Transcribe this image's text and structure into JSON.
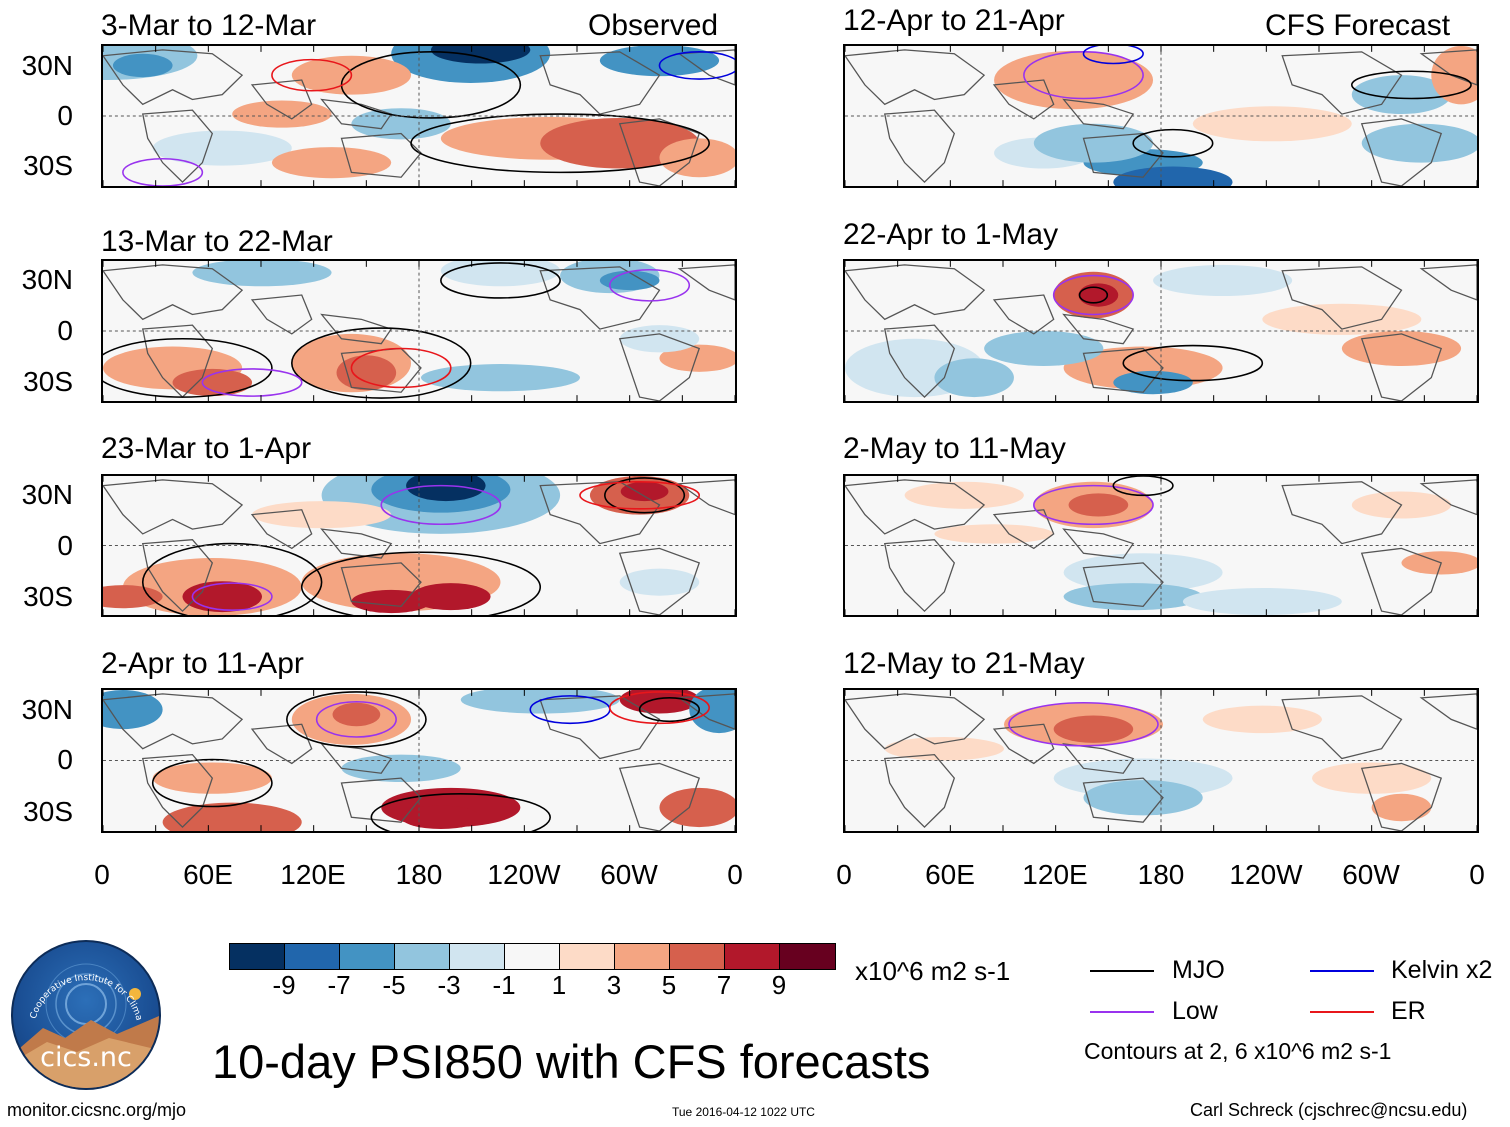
{
  "panels": [
    {
      "id": "p1",
      "title": "3-Mar to 12-Mar",
      "tag": "Observed"
    },
    {
      "id": "p2",
      "title": "13-Mar to 22-Mar",
      "tag": ""
    },
    {
      "id": "p3",
      "title": "23-Mar to 1-Apr",
      "tag": ""
    },
    {
      "id": "p4",
      "title": "2-Apr to 11-Apr",
      "tag": ""
    },
    {
      "id": "p5",
      "title": "12-Apr to 21-Apr",
      "tag": "CFS Forecast"
    },
    {
      "id": "p6",
      "title": "22-Apr to 1-May",
      "tag": ""
    },
    {
      "id": "p7",
      "title": "2-May to 11-May",
      "tag": ""
    },
    {
      "id": "p8",
      "title": "12-May to 21-May",
      "tag": ""
    }
  ],
  "yticks": [
    "30N",
    "0",
    "30S"
  ],
  "xticks": [
    "0",
    "60E",
    "120E",
    "180",
    "120W",
    "60W",
    "0"
  ],
  "colorbar": {
    "colors": [
      "#053061",
      "#2166ac",
      "#4393c3",
      "#92c5de",
      "#d1e5f0",
      "#f7f7f7",
      "#fddbc7",
      "#f4a582",
      "#d6604d",
      "#b2182b",
      "#67001f"
    ],
    "labels": [
      "-9",
      "-7",
      "-5",
      "-3",
      "-1",
      "1",
      "3",
      "5",
      "7",
      "9"
    ],
    "units": "x10^6 m2 s-1"
  },
  "legend": [
    {
      "label": "MJO",
      "color": "#000000"
    },
    {
      "label": "Kelvin x2",
      "color": "#0000dd"
    },
    {
      "label": "Low",
      "color": "#9933ee"
    },
    {
      "label": "ER",
      "color": "#e8161b"
    }
  ],
  "contour_note": "Contours at 2, 6 x10^6 m2 s-1",
  "main_title": "10-day PSI850 with CFS forecasts",
  "logo": {
    "arc_text": "Cooperative Institute for Climate and Satellites",
    "name": "cics.nc"
  },
  "footer": {
    "url": "monitor.cicsnc.org/mjo",
    "timestamp": "Tue 2016-04-12 1022 UTC",
    "author": "Carl Schreck (cjschrec@ncsu.edu)"
  }
}
